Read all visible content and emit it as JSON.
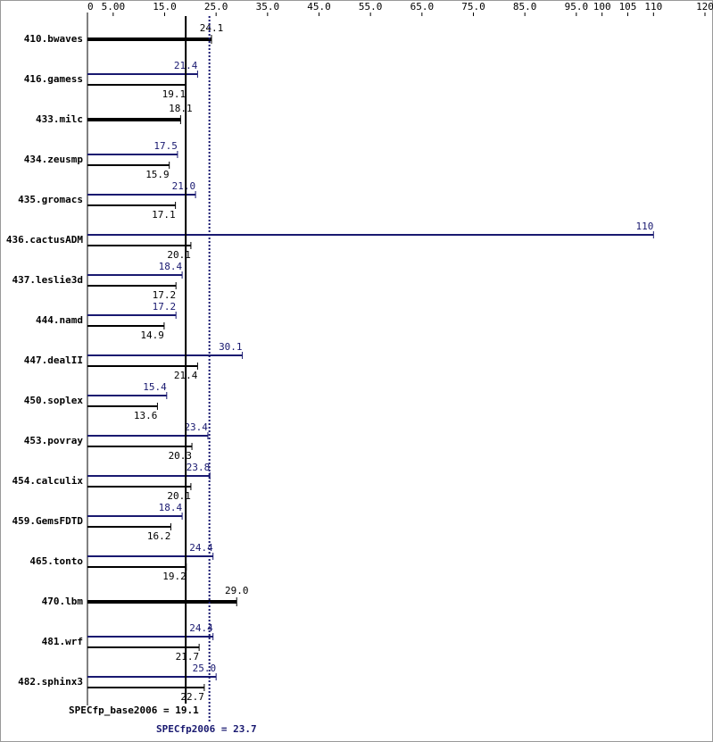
{
  "chart_data": {
    "type": "bar",
    "categories": [
      "410.bwaves",
      "416.gamess",
      "433.milc",
      "434.zeusmp",
      "435.gromacs",
      "436.cactusADM",
      "437.leslie3d",
      "444.namd",
      "447.dealII",
      "450.soplex",
      "453.povray",
      "454.calculix",
      "459.GemsFDTD",
      "465.tonto",
      "470.lbm",
      "481.wrf",
      "482.sphinx3"
    ],
    "series": [
      {
        "color": "#000000",
        "values": [
          24.1,
          19.1,
          18.1,
          15.9,
          17.1,
          20.1,
          17.2,
          14.9,
          21.4,
          13.6,
          20.3,
          20.1,
          16.2,
          19.2,
          29.0,
          21.7,
          22.7
        ],
        "value_labels": [
          "24.1",
          "19.1",
          "18.1",
          "15.9",
          "17.1",
          "20.1",
          "17.2",
          "14.9",
          "21.4",
          "13.6",
          "20.3",
          "20.1",
          "16.2",
          "19.2",
          "29.0",
          "21.7",
          "22.7"
        ]
      },
      {
        "color": "#191970",
        "values": [
          null,
          21.4,
          null,
          17.5,
          21.0,
          110,
          18.4,
          17.2,
          30.1,
          15.4,
          23.4,
          23.8,
          18.4,
          24.4,
          null,
          24.4,
          25.0
        ],
        "value_labels": [
          null,
          "21.4",
          null,
          "17.5",
          "21.0",
          "110",
          "18.4",
          "17.2",
          "30.1",
          "15.4",
          "23.4",
          "23.8",
          "18.4",
          "24.4",
          null,
          "24.4",
          "25.0"
        ]
      }
    ],
    "xlim": [
      0,
      120
    ],
    "xticks": [
      0,
      {
        "value": 5,
        "label": "5.00"
      },
      {
        "value": 15,
        "label": "15.0"
      },
      {
        "value": 25,
        "label": "25.0"
      },
      {
        "value": 35,
        "label": "35.0"
      },
      {
        "value": 45,
        "label": "45.0"
      },
      {
        "value": 55,
        "label": "55.0"
      },
      {
        "value": 65,
        "label": "65.0"
      },
      {
        "value": 75,
        "label": "75.0"
      },
      {
        "value": 85,
        "label": "85.0"
      },
      {
        "value": 95,
        "label": "95.0"
      },
      100,
      105,
      110,
      120
    ],
    "base_label": "SPECfp_base2006 =",
    "base_mean": 19.1,
    "peak_label": "SPECfp2006 =",
    "peak_mean": 23.7
  }
}
